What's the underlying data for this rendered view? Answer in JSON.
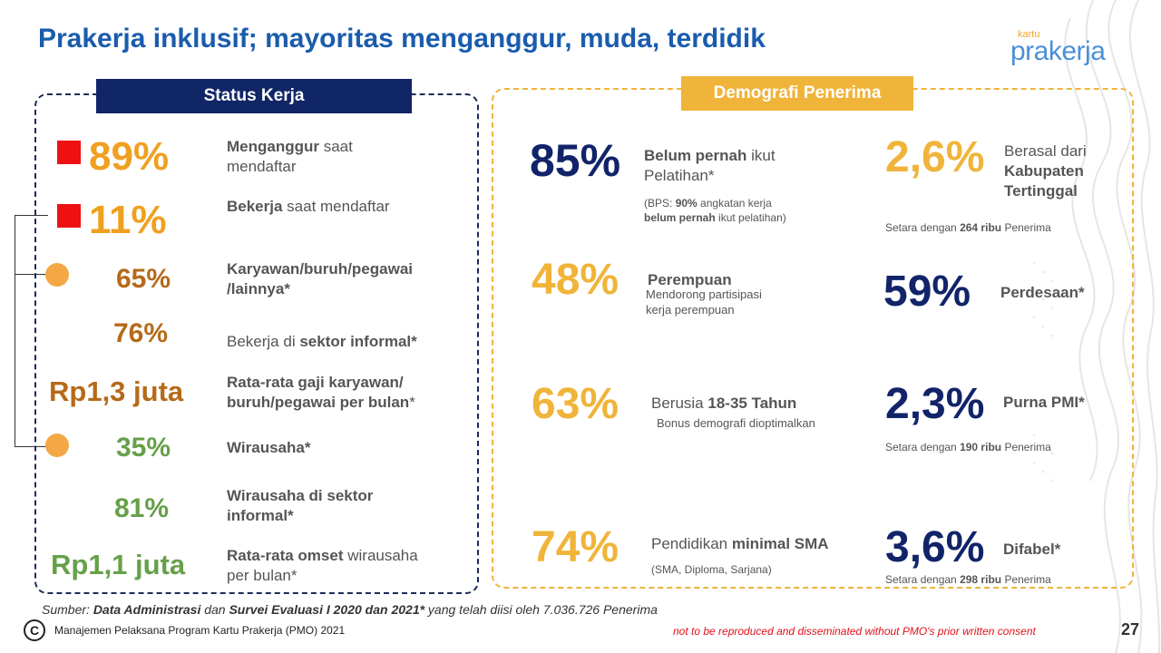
{
  "title": "Prakerja inklusif; mayoritas menganggur, muda, terdidik",
  "logo": {
    "small": "kartu",
    "main": "prakerja"
  },
  "left": {
    "header": "Status Kerja",
    "items": [
      {
        "value": "89%",
        "b1": "Menganggur",
        "t1": " saat",
        "t2": "mendaftar"
      },
      {
        "value": "11%",
        "b1": "Bekerja",
        "t1": " saat mendaftar"
      },
      {
        "value": "65%",
        "b1": "Karyawan/buruh/pegawai",
        "b2": "/lainnya*"
      },
      {
        "value": "76%",
        "t1": "Bekerja di ",
        "b1": "sektor informal*"
      },
      {
        "value": "Rp1,3 juta",
        "b1": "Rata-rata gaji karyawan/",
        "b2": "buruh/pegawai per bulan",
        "t2": "*"
      },
      {
        "value": "35%",
        "b1": "Wirausaha*"
      },
      {
        "value": "81%",
        "b1": "Wirausaha di sektor",
        "b2": "informal*"
      },
      {
        "value": "Rp1,1 juta",
        "b1": "Rata-rata omset",
        "t1": " wirausaha",
        "t2": "per bulan*"
      }
    ]
  },
  "right": {
    "header": "Demografi Penerima",
    "belum": {
      "value": "85%",
      "b1": "Belum pernah",
      "t1": " ikut",
      "t2": "Pelatihan*",
      "n1": "(BPS: ",
      "n2": "90%",
      "n3": " angkatan kerja",
      "n4": "belum pernah",
      "n5": " ikut pelatihan)"
    },
    "kabupaten": {
      "value": "2,6%",
      "t1": "Berasal dari",
      "b1": "Kabupaten",
      "b2": "Tertinggal",
      "n1": "Setara dengan ",
      "n2": "264 ribu",
      "n3": " Penerima"
    },
    "perempuan": {
      "value": "48%",
      "b1": "Perempuan",
      "t1": "Mendorong partisipasi",
      "t2": "kerja perempuan"
    },
    "perdesaan": {
      "value": "59%",
      "b1": "Perdesaan*"
    },
    "usia": {
      "value": "63%",
      "t1": "Berusia ",
      "b1": "18-35 Tahun",
      "t2": "Bonus demografi dioptimalkan"
    },
    "pmi": {
      "value": "2,3%",
      "b1": "Purna PMI*",
      "n1": "Setara dengan ",
      "n2": "190 ribu",
      "n3": " Penerima"
    },
    "pendidikan": {
      "value": "74%",
      "t1": "Pendidikan ",
      "b1": "minimal SMA",
      "t2": "(SMA, Diploma, Sarjana)"
    },
    "difabel": {
      "value": "3,6%",
      "b1": "Difabel*",
      "n1": "Setara dengan ",
      "n2": "298 ribu",
      "n3": " Penerima"
    }
  },
  "footer": {
    "s1": "Sumber: ",
    "s2": "Data Administrasi",
    "s3": " dan ",
    "s4": "Survei Evaluasi I 2020 dan 2021*",
    "s5": " yang telah diisi oleh 7.036.726 Penerima",
    "copyright_symbol": "C",
    "copyright": "Manajemen Pelaksana Program Kartu Prakerja (PMO) 2021",
    "consent": "not to be reproduced and disseminated without PMO's prior written consent",
    "page": "27"
  },
  "colors": {
    "title": "#1a5cad",
    "navy": "#11246a",
    "yellow": "#f0b43a",
    "orange": "#f0a020",
    "brown": "#b56a18",
    "green": "#66a04a",
    "red": "#ee1111"
  }
}
